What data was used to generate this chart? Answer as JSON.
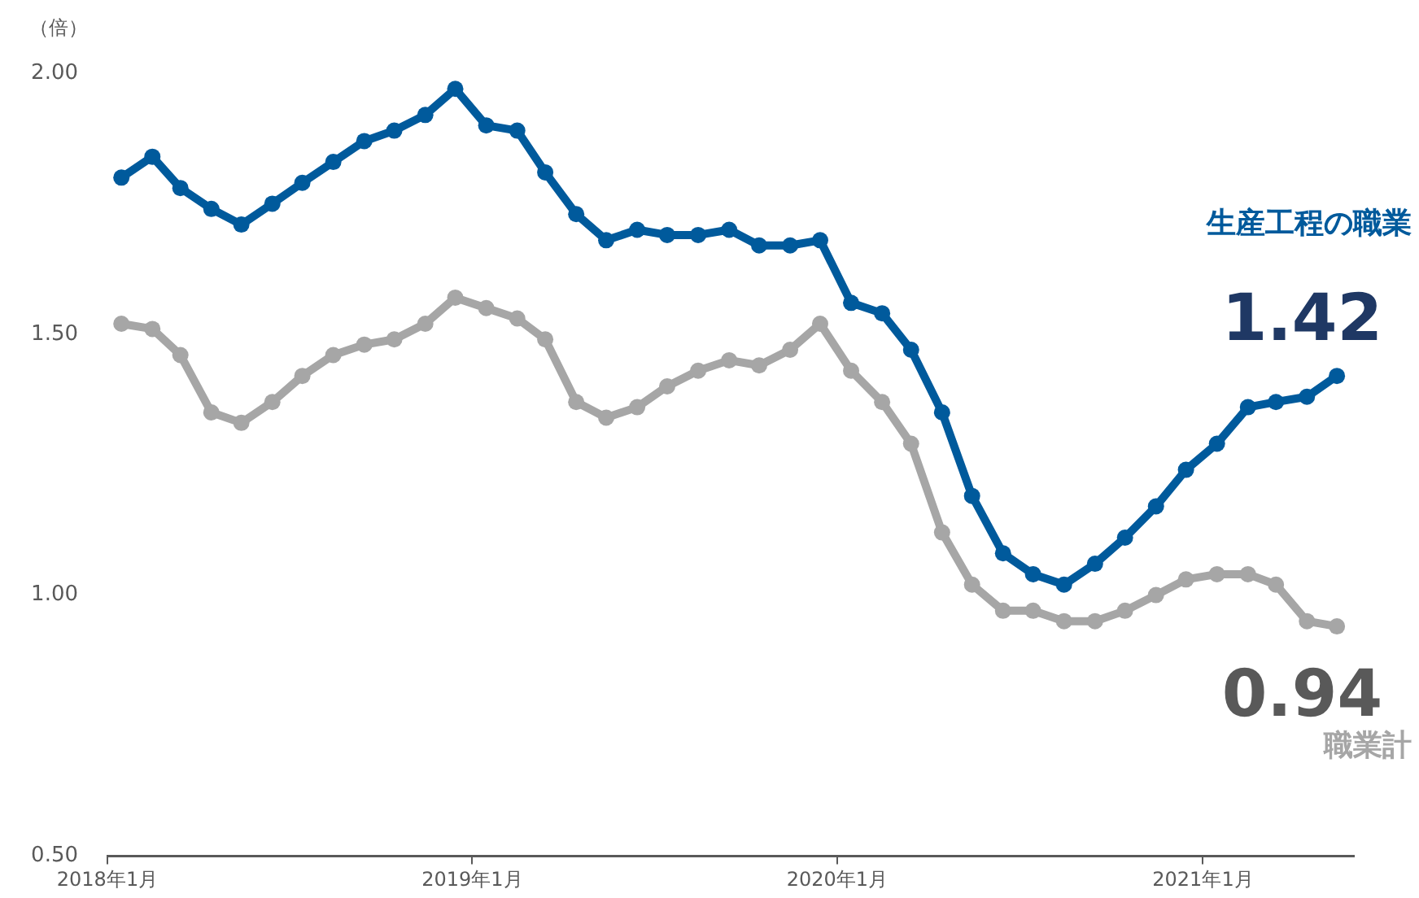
{
  "chart_data": {
    "type": "line",
    "ylabel": "（倍）",
    "x": [
      "2018-01-15",
      "2018-02-15",
      "2018-03-15",
      "2018-04-15",
      "2018-05-15",
      "2018-06-15",
      "2018-07-15",
      "2018-08-15",
      "2018-09-15",
      "2018-10-15",
      "2018-11-15",
      "2018-12-15",
      "2019-01-15",
      "2019-02-15",
      "2019-03-15",
      "2019-04-15",
      "2019-05-15",
      "2019-06-15",
      "2019-07-15",
      "2019-08-15",
      "2019-09-15",
      "2019-10-15",
      "2019-11-15",
      "2019-12-15",
      "2020-01-15",
      "2020-02-15",
      "2020-03-15",
      "2020-04-15",
      "2020-05-15",
      "2020-06-15",
      "2020-07-15",
      "2020-08-15",
      "2020-09-15",
      "2020-10-15",
      "2020-11-15",
      "2020-12-15",
      "2021-01-15",
      "2021-02-15",
      "2021-03-15",
      "2021-04-15",
      "2021-05-15"
    ],
    "series": [
      {
        "name": "生産工程の職業",
        "color": "#005a9c",
        "values": [
          1.8,
          1.84,
          1.78,
          1.74,
          1.71,
          1.75,
          1.79,
          1.83,
          1.87,
          1.89,
          1.92,
          1.97,
          1.9,
          1.89,
          1.81,
          1.73,
          1.68,
          1.7,
          1.69,
          1.69,
          1.7,
          1.67,
          1.67,
          1.68,
          1.56,
          1.54,
          1.47,
          1.35,
          1.19,
          1.08,
          1.04,
          1.02,
          1.06,
          1.11,
          1.17,
          1.24,
          1.29,
          1.36,
          1.37,
          1.38,
          1.42
        ],
        "value_labels": [
          null,
          null,
          null,
          null,
          null,
          null,
          null,
          null,
          null,
          null,
          null,
          null,
          null,
          null,
          null,
          null,
          null,
          null,
          null,
          null,
          null,
          null,
          null,
          null,
          null,
          null,
          null,
          null,
          null,
          null,
          null,
          null,
          null,
          null,
          null,
          null,
          null,
          null,
          null,
          null,
          "1.42"
        ]
      },
      {
        "name": "職業計",
        "color": "#a6a6a6",
        "values": [
          1.52,
          1.51,
          1.46,
          1.35,
          1.33,
          1.37,
          1.42,
          1.46,
          1.48,
          1.49,
          1.52,
          1.57,
          1.55,
          1.53,
          1.49,
          1.37,
          1.34,
          1.36,
          1.4,
          1.43,
          1.45,
          1.44,
          1.47,
          1.52,
          1.43,
          1.37,
          1.29,
          1.12,
          1.02,
          0.97,
          0.97,
          0.95,
          0.95,
          0.97,
          1.0,
          1.03,
          1.04,
          1.04,
          1.02,
          0.95,
          0.94
        ],
        "value_labels": [
          null,
          null,
          null,
          null,
          null,
          null,
          null,
          null,
          null,
          null,
          null,
          null,
          null,
          null,
          null,
          null,
          null,
          null,
          null,
          null,
          null,
          null,
          null,
          null,
          null,
          null,
          null,
          null,
          null,
          null,
          null,
          null,
          null,
          null,
          null,
          null,
          null,
          null,
          null,
          null,
          "0.94"
        ]
      }
    ],
    "xlim": [
      "2018-01-01",
      "2021-06-01"
    ],
    "xticks": [
      {
        "value": "2018-01-01",
        "label": "2018年1月"
      },
      {
        "value": "2019-01-01",
        "label": "2019年1月"
      },
      {
        "value": "2020-01-01",
        "label": "2020年1月"
      },
      {
        "value": "2021-01-01",
        "label": "2021年1月"
      }
    ],
    "ylim": [
      0.5,
      2.0
    ],
    "yticks": [
      {
        "value": 0.5,
        "label": "0.50"
      },
      {
        "value": 1.0,
        "label": "1.00"
      },
      {
        "value": 1.5,
        "label": "1.50"
      },
      {
        "value": 2.0,
        "label": "2.00"
      }
    ],
    "grid": false,
    "legend": false,
    "marker": "circle",
    "line_style": "solid"
  }
}
